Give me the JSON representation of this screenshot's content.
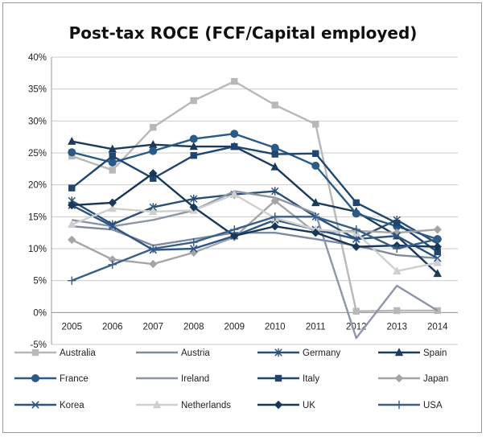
{
  "chart_data": {
    "type": "line",
    "title": "Post-tax ROCE (FCF/Capital employed)",
    "xlabel": "",
    "ylabel": "",
    "x": [
      "2005",
      "2006",
      "2007",
      "2008",
      "2009",
      "2010",
      "2011",
      "2012",
      "2013",
      "2014"
    ],
    "ylim": [
      -5,
      40
    ],
    "yticks": [
      -5,
      0,
      5,
      10,
      15,
      20,
      25,
      30,
      35,
      40
    ],
    "ytick_labels": [
      "-5%",
      "0%",
      "5%",
      "10%",
      "15%",
      "20%",
      "25%",
      "30%",
      "35%",
      "40%"
    ],
    "grid": true,
    "legend_position": "bottom",
    "series": [
      {
        "name": "Australia",
        "color": "#b8b8b8",
        "marker": "square",
        "values": [
          24.5,
          22.3,
          29,
          33.2,
          36.2,
          32.5,
          29.5,
          0.2,
          0.3,
          0.3
        ]
      },
      {
        "name": "Austria",
        "color": "#7e8a9e",
        "marker": "none",
        "values": [
          13.5,
          13.0,
          10.5,
          11.5,
          12.5,
          12.5,
          11.5,
          10.5,
          9.0,
          8.5
        ]
      },
      {
        "name": "Germany",
        "color": "#274f78",
        "marker": "asterisk",
        "values": [
          17.5,
          13.8,
          16.5,
          17.8,
          18.5,
          19.0,
          15.0,
          11.5,
          14.5,
          10.8
        ]
      },
      {
        "name": "Spain",
        "color": "#1b3a5c",
        "marker": "triangle",
        "values": [
          26.8,
          25.6,
          26.3,
          26.0,
          26.0,
          22.8,
          17.2,
          15.8,
          12.0,
          6.1
        ]
      },
      {
        "name": "France",
        "color": "#2a5a86",
        "marker": "circle",
        "values": [
          25.1,
          23.5,
          25.3,
          27.2,
          28.0,
          25.8,
          23.0,
          15.5,
          13.5,
          11.5
        ]
      },
      {
        "name": "Ireland",
        "color": "#8d96a8",
        "marker": "none",
        "values": [
          14.5,
          13.5,
          14.5,
          16.0,
          19.0,
          18.0,
          15.5,
          -4.0,
          4.2,
          0.3
        ]
      },
      {
        "name": "Italy",
        "color": "#1e4670",
        "marker": "square",
        "values": [
          19.5,
          24.5,
          21.0,
          24.6,
          26.0,
          24.8,
          24.9,
          17.2,
          14.0,
          9.5
        ]
      },
      {
        "name": "Japan",
        "color": "#a5a5a5",
        "marker": "diamond",
        "values": [
          11.4,
          8.3,
          7.6,
          9.4,
          11.8,
          17.5,
          12.5,
          12.8,
          12.5,
          13.0
        ]
      },
      {
        "name": "Korea",
        "color": "#2d5583",
        "marker": "x",
        "values": [
          16.8,
          13.5,
          9.8,
          10.0,
          12.0,
          14.5,
          13.0,
          11.5,
          12.0,
          8.5
        ]
      },
      {
        "name": "Netherlands",
        "color": "#cfcfcf",
        "marker": "triangle",
        "values": [
          13.8,
          16.3,
          15.8,
          16.0,
          18.5,
          14.8,
          13.0,
          12.5,
          6.5,
          7.8
        ]
      },
      {
        "name": "UK",
        "color": "#173756",
        "marker": "diamond",
        "values": [
          16.8,
          17.2,
          21.8,
          16.5,
          12.0,
          13.5,
          12.5,
          10.3,
          10.5,
          10.3
        ]
      },
      {
        "name": "USA",
        "color": "#3a5f86",
        "marker": "plus",
        "values": [
          5.0,
          7.5,
          10.0,
          11.0,
          13.0,
          15.0,
          15.0,
          13.0,
          10.0,
          11.5
        ]
      }
    ]
  }
}
